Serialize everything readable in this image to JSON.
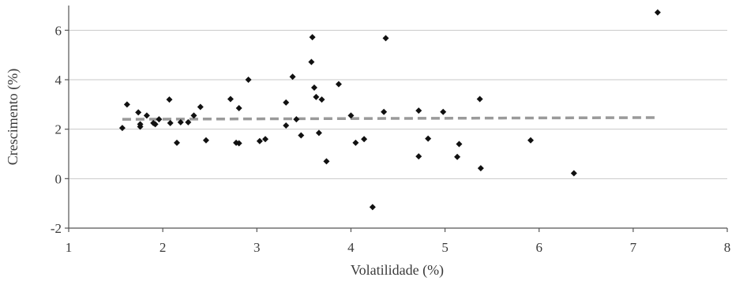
{
  "chart_data": {
    "type": "scatter",
    "title": "",
    "xlabel": "Volatilidade (%)",
    "ylabel": "Crescimento (%)",
    "xlim": [
      1,
      8
    ],
    "ylim": [
      -2,
      7
    ],
    "x_ticks": [
      1,
      2,
      3,
      4,
      5,
      6,
      7,
      8
    ],
    "y_ticks": [
      -2,
      0,
      2,
      4,
      6
    ],
    "x_tick_labels": [
      "1",
      "2",
      "3",
      "4",
      "5",
      "6",
      "7",
      "8"
    ],
    "y_tick_labels": [
      "-2",
      "0",
      "2",
      "4",
      "6"
    ],
    "grid": "horizontal",
    "legend": "none",
    "colors": {
      "points": "#111111",
      "trend": "#9a9a9a",
      "grid": "#c8c8c8"
    },
    "points": [
      {
        "x": 1.57,
        "y": 2.05
      },
      {
        "x": 1.62,
        "y": 3.0
      },
      {
        "x": 1.74,
        "y": 2.68
      },
      {
        "x": 1.76,
        "y": 2.1
      },
      {
        "x": 1.76,
        "y": 2.2
      },
      {
        "x": 1.83,
        "y": 2.55
      },
      {
        "x": 1.9,
        "y": 2.25
      },
      {
        "x": 1.92,
        "y": 2.2
      },
      {
        "x": 1.96,
        "y": 2.4
      },
      {
        "x": 2.07,
        "y": 3.2
      },
      {
        "x": 2.08,
        "y": 2.25
      },
      {
        "x": 2.15,
        "y": 1.45
      },
      {
        "x": 2.19,
        "y": 2.28
      },
      {
        "x": 2.27,
        "y": 2.28
      },
      {
        "x": 2.33,
        "y": 2.55
      },
      {
        "x": 2.4,
        "y": 2.9
      },
      {
        "x": 2.46,
        "y": 1.55
      },
      {
        "x": 2.72,
        "y": 3.22
      },
      {
        "x": 2.78,
        "y": 1.45
      },
      {
        "x": 2.81,
        "y": 1.43
      },
      {
        "x": 2.81,
        "y": 2.85
      },
      {
        "x": 2.91,
        "y": 4.0
      },
      {
        "x": 3.03,
        "y": 1.52
      },
      {
        "x": 3.09,
        "y": 1.6
      },
      {
        "x": 3.31,
        "y": 3.08
      },
      {
        "x": 3.31,
        "y": 2.15
      },
      {
        "x": 3.38,
        "y": 4.12
      },
      {
        "x": 3.42,
        "y": 2.4
      },
      {
        "x": 3.47,
        "y": 1.75
      },
      {
        "x": 3.58,
        "y": 4.72
      },
      {
        "x": 3.59,
        "y": 5.72
      },
      {
        "x": 3.61,
        "y": 3.68
      },
      {
        "x": 3.63,
        "y": 3.3
      },
      {
        "x": 3.66,
        "y": 1.85
      },
      {
        "x": 3.69,
        "y": 3.2
      },
      {
        "x": 3.74,
        "y": 0.7
      },
      {
        "x": 3.87,
        "y": 3.82
      },
      {
        "x": 4.0,
        "y": 2.55
      },
      {
        "x": 4.05,
        "y": 1.45
      },
      {
        "x": 4.14,
        "y": 1.6
      },
      {
        "x": 4.23,
        "y": -1.15
      },
      {
        "x": 4.35,
        "y": 2.7
      },
      {
        "x": 4.37,
        "y": 5.68
      },
      {
        "x": 4.72,
        "y": 2.75
      },
      {
        "x": 4.72,
        "y": 0.9
      },
      {
        "x": 4.82,
        "y": 1.62
      },
      {
        "x": 4.98,
        "y": 2.7
      },
      {
        "x": 5.13,
        "y": 0.88
      },
      {
        "x": 5.15,
        "y": 1.4
      },
      {
        "x": 5.37,
        "y": 3.22
      },
      {
        "x": 5.38,
        "y": 0.42
      },
      {
        "x": 5.91,
        "y": 1.55
      },
      {
        "x": 6.37,
        "y": 0.22
      },
      {
        "x": 7.26,
        "y": 6.72
      }
    ],
    "trendline": {
      "style": "dashed",
      "from": {
        "x": 1.57,
        "y": 2.4
      },
      "to": {
        "x": 7.26,
        "y": 2.47
      }
    }
  }
}
